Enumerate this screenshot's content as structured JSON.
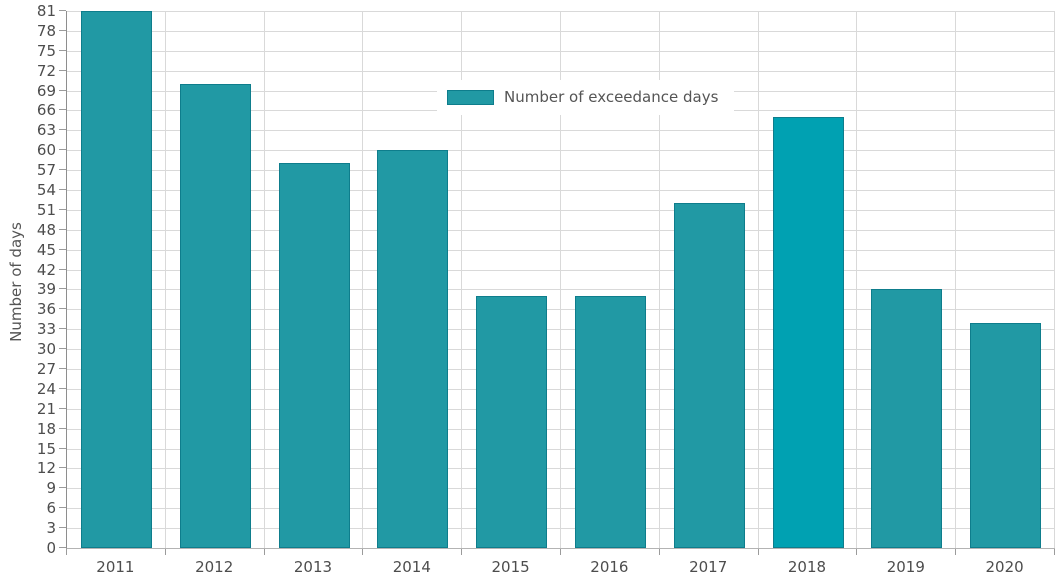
{
  "chart_data": {
    "type": "bar",
    "title": "",
    "categories": [
      "2011",
      "2012",
      "2013",
      "2014",
      "2015",
      "2016",
      "2017",
      "2018",
      "2019",
      "2020"
    ],
    "values": [
      81,
      70,
      58,
      60,
      38,
      38,
      52,
      65,
      39,
      34
    ],
    "series_name": "Number of exceedance days",
    "xlabel": "",
    "ylabel": "Number of days",
    "ylim": [
      0,
      81
    ],
    "ytick_step": 3,
    "grid": true,
    "legend": {
      "label": "Number of exceedance days",
      "position": "top-center"
    },
    "highlighted_category": "2018"
  },
  "colors": {
    "bar_fill": "#2199a4",
    "bar_fill_highlight": "#00a1b2",
    "bar_border": "#0e7d8c",
    "gridline": "#d9d9d9",
    "axis_line": "#9b9b9b",
    "tick_mark": "#9b9b9b",
    "tick_text": "#4d4d4d",
    "background": "#ffffff"
  }
}
